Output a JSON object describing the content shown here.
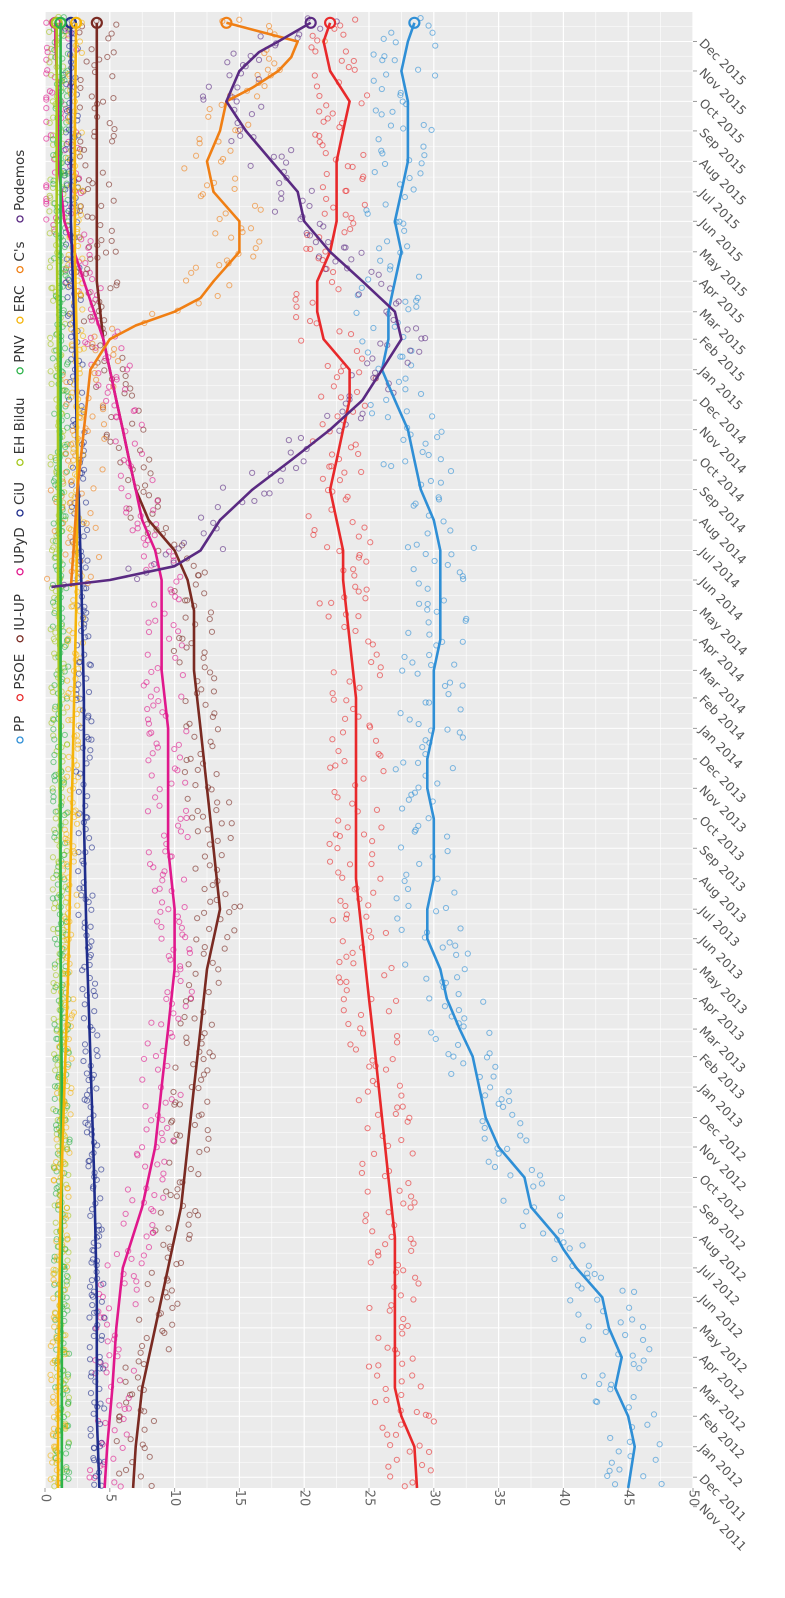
{
  "chart_data": {
    "type": "line",
    "orientation": "rotated-90-clockwise",
    "title": "",
    "xlabel": "",
    "ylabel": "",
    "ylim": [
      0,
      50
    ],
    "y_ticks": [
      0,
      5,
      10,
      15,
      20,
      25,
      30,
      35,
      40,
      45,
      50
    ],
    "x_tick_labels": [
      "Nov 2011",
      "Dec 2011",
      "Jan 2012",
      "Feb 2012",
      "Mar 2012",
      "Apr 2012",
      "May 2012",
      "Jun 2012",
      "Jul 2012",
      "Aug 2012",
      "Sep 2012",
      "Oct 2012",
      "Nov 2012",
      "Dec 2012",
      "Jan 2013",
      "Feb 2013",
      "Mar 2013",
      "Apr 2013",
      "May 2013",
      "Jun 2013",
      "Jul 2013",
      "Aug 2013",
      "Sep 2013",
      "Oct 2013",
      "Nov 2013",
      "Dec 2013",
      "Jan 2014",
      "Feb 2014",
      "Mar 2014",
      "Apr 2014",
      "May 2014",
      "Jun 2014",
      "Jul 2014",
      "Aug 2014",
      "Sep 2014",
      "Oct 2014",
      "Nov 2014",
      "Dec 2014",
      "Jan 2015",
      "Feb 2015",
      "Mar 2015",
      "Apr 2015",
      "May 2015",
      "Jun 2015",
      "Jul 2015",
      "Aug 2015",
      "Sep 2015",
      "Oct 2015",
      "Nov 2015",
      "Dec 2015"
    ],
    "x_range": [
      "2011-11-20",
      "2015-12-31"
    ],
    "grid": true,
    "legend_position": "top",
    "markers": "hollow circles for individual polls, solid line for trend",
    "series": [
      {
        "name": "PP",
        "color": "#2f8fd6",
        "points": [
          [
            "2011-11-20",
            45
          ],
          [
            "2012-01-01",
            45.5
          ],
          [
            "2012-02-01",
            45
          ],
          [
            "2012-03-01",
            44
          ],
          [
            "2012-04-01",
            44.5
          ],
          [
            "2012-05-01",
            43.5
          ],
          [
            "2012-06-01",
            43
          ],
          [
            "2012-07-01",
            41
          ],
          [
            "2012-07-20",
            40
          ],
          [
            "2012-08-01",
            39.5
          ],
          [
            "2012-09-01",
            37.5
          ],
          [
            "2012-10-01",
            37
          ],
          [
            "2012-11-01",
            35
          ],
          [
            "2012-12-01",
            34
          ],
          [
            "2013-01-01",
            33.5
          ],
          [
            "2013-02-01",
            33
          ],
          [
            "2013-03-01",
            32
          ],
          [
            "2013-04-01",
            31
          ],
          [
            "2013-05-01",
            30.5
          ],
          [
            "2013-06-01",
            29.5
          ],
          [
            "2013-07-01",
            29.5
          ],
          [
            "2013-08-01",
            30
          ],
          [
            "2013-09-01",
            30
          ],
          [
            "2013-10-01",
            30
          ],
          [
            "2013-11-01",
            29.5
          ],
          [
            "2013-12-01",
            29.5
          ],
          [
            "2014-01-01",
            30
          ],
          [
            "2014-02-01",
            30
          ],
          [
            "2014-03-01",
            30
          ],
          [
            "2014-04-01",
            30.5
          ],
          [
            "2014-05-01",
            30.5
          ],
          [
            "2014-06-01",
            30.5
          ],
          [
            "2014-07-01",
            30.5
          ],
          [
            "2014-08-01",
            30
          ],
          [
            "2014-09-01",
            29
          ],
          [
            "2014-10-01",
            28.5
          ],
          [
            "2014-11-01",
            28
          ],
          [
            "2014-12-01",
            27
          ],
          [
            "2015-01-01",
            26
          ],
          [
            "2015-02-01",
            26.5
          ],
          [
            "2015-03-01",
            26.5
          ],
          [
            "2015-04-01",
            27
          ],
          [
            "2015-05-01",
            27.5
          ],
          [
            "2015-06-01",
            27
          ],
          [
            "2015-07-01",
            27.5
          ],
          [
            "2015-08-01",
            28
          ],
          [
            "2015-09-01",
            28
          ],
          [
            "2015-10-01",
            28
          ],
          [
            "2015-11-01",
            27.5
          ],
          [
            "2015-12-01",
            28
          ],
          [
            "2015-12-20",
            28.5
          ]
        ]
      },
      {
        "name": "PSOE",
        "color": "#e8292b",
        "points": [
          [
            "2011-11-20",
            28.7
          ],
          [
            "2012-01-01",
            28.5
          ],
          [
            "2012-02-01",
            27.5
          ],
          [
            "2012-03-01",
            27
          ],
          [
            "2012-04-01",
            27
          ],
          [
            "2012-06-01",
            27
          ],
          [
            "2012-08-01",
            27
          ],
          [
            "2012-10-01",
            26.5
          ],
          [
            "2012-12-01",
            26
          ],
          [
            "2013-02-01",
            25.5
          ],
          [
            "2013-04-01",
            25
          ],
          [
            "2013-06-01",
            24.5
          ],
          [
            "2013-08-01",
            24
          ],
          [
            "2013-10-01",
            24
          ],
          [
            "2013-12-01",
            24
          ],
          [
            "2014-02-01",
            24
          ],
          [
            "2014-04-01",
            23.5
          ],
          [
            "2014-06-01",
            23
          ],
          [
            "2014-07-01",
            23
          ],
          [
            "2014-08-01",
            22.5
          ],
          [
            "2014-09-01",
            22
          ],
          [
            "2014-10-01",
            22.5
          ],
          [
            "2014-11-01",
            23
          ],
          [
            "2014-12-01",
            23.5
          ],
          [
            "2015-01-01",
            23.5
          ],
          [
            "2015-02-01",
            21.5
          ],
          [
            "2015-03-01",
            21
          ],
          [
            "2015-04-01",
            21
          ],
          [
            "2015-05-01",
            22
          ],
          [
            "2015-06-01",
            22.5
          ],
          [
            "2015-07-01",
            22.5
          ],
          [
            "2015-08-01",
            22.5
          ],
          [
            "2015-09-01",
            23
          ],
          [
            "2015-10-01",
            23.5
          ],
          [
            "2015-11-01",
            22
          ],
          [
            "2015-12-01",
            21.5
          ],
          [
            "2015-12-20",
            22
          ]
        ]
      },
      {
        "name": "IU-UP",
        "color": "#7a2a22",
        "points": [
          [
            "2011-11-20",
            6.8
          ],
          [
            "2012-01-01",
            7
          ],
          [
            "2012-03-01",
            7.5
          ],
          [
            "2012-05-01",
            8.5
          ],
          [
            "2012-07-01",
            9.5
          ],
          [
            "2012-09-01",
            10.5
          ],
          [
            "2012-11-01",
            11
          ],
          [
            "2013-01-01",
            11.5
          ],
          [
            "2013-03-01",
            12
          ],
          [
            "2013-05-01",
            12.5
          ],
          [
            "2013-07-01",
            13.5
          ],
          [
            "2013-09-01",
            13
          ],
          [
            "2013-11-01",
            12.5
          ],
          [
            "2014-01-01",
            12
          ],
          [
            "2014-03-01",
            11.5
          ],
          [
            "2014-05-01",
            11.5
          ],
          [
            "2014-06-01",
            11
          ],
          [
            "2014-07-01",
            10
          ],
          [
            "2014-08-01",
            8
          ],
          [
            "2014-09-01",
            7
          ],
          [
            "2014-10-01",
            6.5
          ],
          [
            "2014-11-01",
            6
          ],
          [
            "2014-12-01",
            5.5
          ],
          [
            "2015-01-01",
            5
          ],
          [
            "2015-02-01",
            4.5
          ],
          [
            "2015-04-01",
            4
          ],
          [
            "2015-06-01",
            4
          ],
          [
            "2015-08-01",
            4
          ],
          [
            "2015-10-01",
            4
          ],
          [
            "2015-12-01",
            4
          ],
          [
            "2015-12-20",
            4
          ]
        ]
      },
      {
        "name": "UPyD",
        "color": "#e0188c",
        "points": [
          [
            "2011-11-20",
            4.6
          ],
          [
            "2012-01-01",
            4.8
          ],
          [
            "2012-03-01",
            5.2
          ],
          [
            "2012-05-01",
            5.5
          ],
          [
            "2012-07-01",
            6
          ],
          [
            "2012-09-01",
            7.5
          ],
          [
            "2012-11-01",
            8.5
          ],
          [
            "2013-01-01",
            9
          ],
          [
            "2013-03-01",
            9.5
          ],
          [
            "2013-05-01",
            10
          ],
          [
            "2013-07-01",
            10
          ],
          [
            "2013-09-01",
            9.5
          ],
          [
            "2013-11-01",
            9.5
          ],
          [
            "2014-01-01",
            9.5
          ],
          [
            "2014-03-01",
            9
          ],
          [
            "2014-05-01",
            9
          ],
          [
            "2014-06-01",
            9
          ],
          [
            "2014-07-01",
            8.5
          ],
          [
            "2014-08-01",
            7.5
          ],
          [
            "2014-09-01",
            7
          ],
          [
            "2014-10-01",
            6.5
          ],
          [
            "2014-11-01",
            6
          ],
          [
            "2014-12-01",
            5.5
          ],
          [
            "2015-01-01",
            5
          ],
          [
            "2015-02-01",
            4.5
          ],
          [
            "2015-04-01",
            3
          ],
          [
            "2015-06-01",
            1.5
          ],
          [
            "2015-08-01",
            1
          ],
          [
            "2015-10-01",
            1
          ],
          [
            "2015-12-01",
            0.8
          ],
          [
            "2015-12-20",
            0.8
          ]
        ]
      },
      {
        "name": "CiU",
        "color": "#1f2d8c",
        "points": [
          [
            "2011-11-20",
            4.2
          ],
          [
            "2012-02-01",
            4
          ],
          [
            "2012-06-01",
            4
          ],
          [
            "2012-10-01",
            3.8
          ],
          [
            "2013-02-01",
            3.5
          ],
          [
            "2013-06-01",
            3.2
          ],
          [
            "2013-10-01",
            3
          ],
          [
            "2014-02-01",
            3
          ],
          [
            "2014-06-01",
            2.8
          ],
          [
            "2014-10-01",
            2.5
          ],
          [
            "2015-02-01",
            2.3
          ],
          [
            "2015-06-01",
            2
          ],
          [
            "2015-10-01",
            2
          ],
          [
            "2015-12-20",
            2
          ]
        ]
      },
      {
        "name": "EH Bildu",
        "color": "#a6c81e",
        "points": [
          [
            "2011-11-20",
            1.3
          ],
          [
            "2012-06-01",
            1.3
          ],
          [
            "2013-01-01",
            1.2
          ],
          [
            "2013-06-01",
            1.2
          ],
          [
            "2014-01-01",
            1.1
          ],
          [
            "2014-06-01",
            1
          ],
          [
            "2015-01-01",
            1
          ],
          [
            "2015-06-01",
            0.9
          ],
          [
            "2015-12-20",
            0.9
          ]
        ]
      },
      {
        "name": "PNV",
        "color": "#2db34a",
        "points": [
          [
            "2011-11-20",
            1.3
          ],
          [
            "2012-06-01",
            1.3
          ],
          [
            "2013-01-01",
            1.3
          ],
          [
            "2013-06-01",
            1.2
          ],
          [
            "2014-01-01",
            1.2
          ],
          [
            "2014-06-01",
            1.2
          ],
          [
            "2015-01-01",
            1.2
          ],
          [
            "2015-06-01",
            1.2
          ],
          [
            "2015-12-20",
            1.2
          ]
        ]
      },
      {
        "name": "ERC",
        "color": "#f5b40a",
        "points": [
          [
            "2011-11-20",
            1
          ],
          [
            "2012-03-01",
            1
          ],
          [
            "2012-09-01",
            1.2
          ],
          [
            "2013-01-01",
            1.5
          ],
          [
            "2013-05-01",
            1.8
          ],
          [
            "2013-09-01",
            2
          ],
          [
            "2014-01-01",
            2.2
          ],
          [
            "2014-05-01",
            2.4
          ],
          [
            "2014-09-01",
            2.5
          ],
          [
            "2015-01-01",
            2.5
          ],
          [
            "2015-05-01",
            2.3
          ],
          [
            "2015-09-01",
            2.3
          ],
          [
            "2015-12-20",
            2.4
          ]
        ]
      },
      {
        "name": "C's",
        "color": "#f07f14",
        "points": [
          [
            "2014-05-25",
            2
          ],
          [
            "2014-07-01",
            2.2
          ],
          [
            "2014-09-01",
            2.5
          ],
          [
            "2014-11-01",
            3
          ],
          [
            "2015-01-01",
            3.5
          ],
          [
            "2015-02-01",
            5
          ],
          [
            "2015-02-15",
            7
          ],
          [
            "2015-03-01",
            10
          ],
          [
            "2015-03-15",
            12
          ],
          [
            "2015-04-01",
            13
          ],
          [
            "2015-05-01",
            15
          ],
          [
            "2015-06-01",
            15
          ],
          [
            "2015-07-01",
            13
          ],
          [
            "2015-08-01",
            12.5
          ],
          [
            "2015-09-01",
            13.5
          ],
          [
            "2015-10-01",
            14
          ],
          [
            "2015-10-15",
            16
          ],
          [
            "2015-11-01",
            18
          ],
          [
            "2015-11-15",
            19
          ],
          [
            "2015-12-01",
            19.5
          ],
          [
            "2015-12-20",
            14
          ]
        ]
      },
      {
        "name": "Podemos",
        "color": "#5a2a82",
        "points": [
          [
            "2014-05-25",
            0.5
          ],
          [
            "2014-06-01",
            5
          ],
          [
            "2014-06-15",
            10
          ],
          [
            "2014-07-01",
            12
          ],
          [
            "2014-08-01",
            13.5
          ],
          [
            "2014-09-01",
            16
          ],
          [
            "2014-10-01",
            19
          ],
          [
            "2014-11-01",
            22
          ],
          [
            "2014-12-01",
            24.5
          ],
          [
            "2015-01-01",
            26
          ],
          [
            "2015-02-01",
            27.5
          ],
          [
            "2015-03-01",
            27
          ],
          [
            "2015-04-01",
            24.5
          ],
          [
            "2015-05-01",
            22
          ],
          [
            "2015-06-01",
            20
          ],
          [
            "2015-07-01",
            19.5
          ],
          [
            "2015-08-01",
            17.5
          ],
          [
            "2015-09-01",
            15.5
          ],
          [
            "2015-10-01",
            14
          ],
          [
            "2015-11-01",
            15
          ],
          [
            "2015-11-20",
            16.5
          ],
          [
            "2015-12-01",
            18
          ],
          [
            "2015-12-20",
            20.5
          ]
        ]
      }
    ]
  }
}
